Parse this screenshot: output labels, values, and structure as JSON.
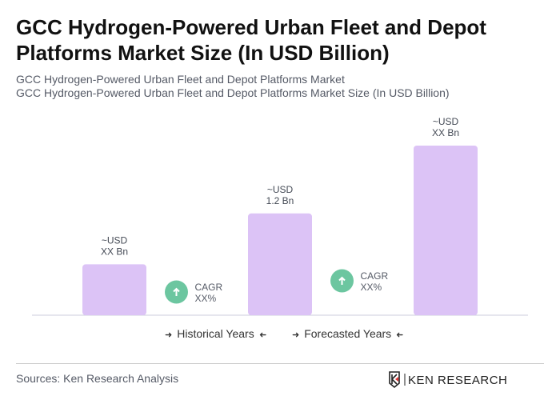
{
  "title": "GCC Hydrogen-Powered Urban Fleet and Depot Platforms Market Size (In USD Billion)",
  "subtitle1": "GCC Hydrogen-Powered Urban Fleet and Depot Platforms Market",
  "subtitle2": "GCC Hydrogen-Powered Urban Fleet and Depot Platforms Market Size (In USD Billion)",
  "chart_data": {
    "type": "bar",
    "categories": [
      "",
      "",
      ""
    ],
    "values": [
      0.6,
      1.2,
      2.0
    ],
    "data_labels": [
      [
        "~USD",
        "XX Bn"
      ],
      [
        "~USD",
        "1.2 Bn"
      ],
      [
        "~USD",
        "XX Bn"
      ]
    ],
    "cagr": [
      [
        "CAGR",
        "XX%"
      ],
      [
        "CAGR",
        "XX%"
      ]
    ],
    "bar_color": "#dcc3f6",
    "cagr_color": "#6cc6a0",
    "grid": false,
    "ylim": [
      0,
      2.0
    ]
  },
  "legend": {
    "historical": "Historical Years",
    "forecasted": "Forecasted Years",
    "arrow_right": "➜",
    "arrow_left": "➜"
  },
  "sources": "Sources: Ken Research Analysis",
  "logo": "KEN RESEARCH"
}
